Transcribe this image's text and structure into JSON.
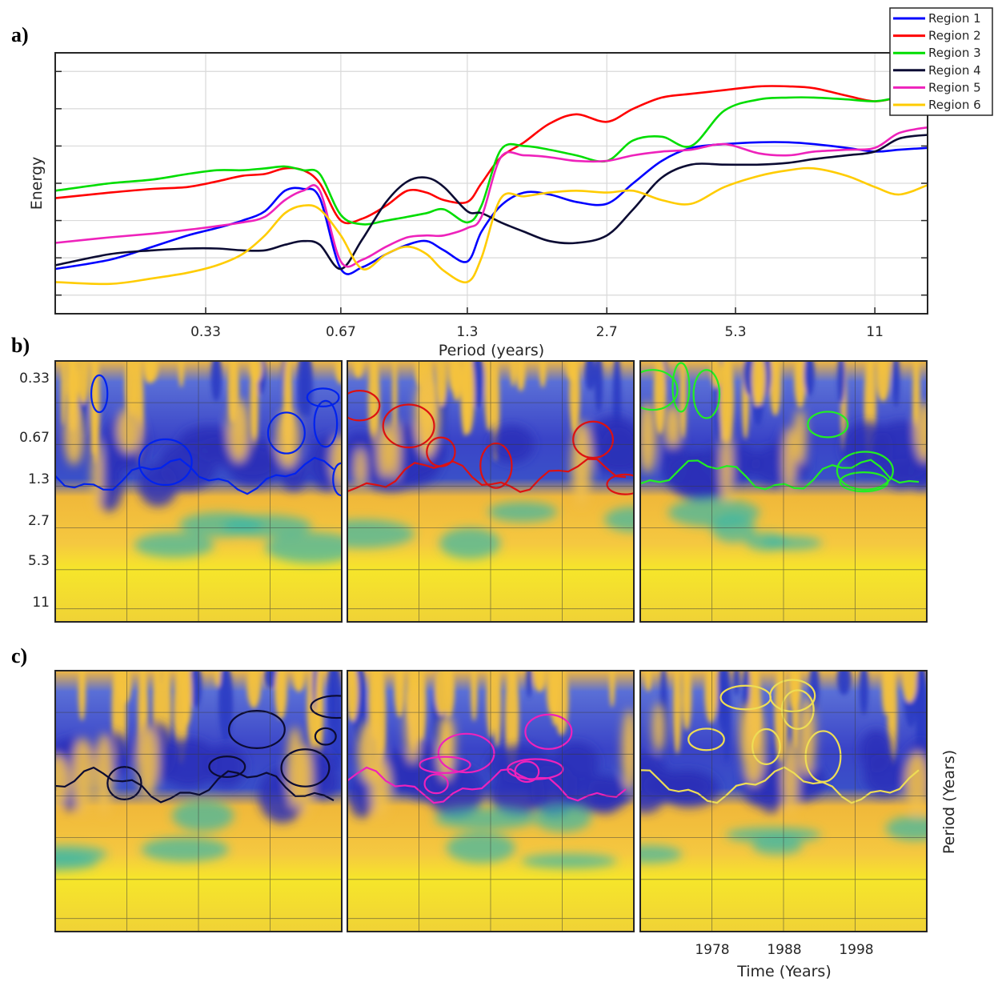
{
  "panel_labels": [
    "a)",
    "b)",
    "c)"
  ],
  "chart_data": [
    {
      "type": "line",
      "panel": "a)",
      "xlabel": "Period (years)",
      "ylabel": "Energy",
      "x_tick_labels": [
        "0.33",
        "0.67",
        "1.3",
        "2.7",
        "5.3",
        "11"
      ],
      "grid": true,
      "legend_position": "top-right",
      "x": [
        0.15,
        0.2,
        0.25,
        0.3,
        0.35,
        0.4,
        0.45,
        0.5,
        0.55,
        0.6,
        0.67,
        0.75,
        0.85,
        0.95,
        1.05,
        1.15,
        1.3,
        1.4,
        1.55,
        1.75,
        2.0,
        2.3,
        2.7,
        3.1,
        3.6,
        4.2,
        5.0,
        6.0,
        7.0,
        8.0,
        9.5,
        11.0,
        12.5,
        14.5
      ],
      "series": [
        {
          "name": "Region 1",
          "color": "#0000ff",
          "values": [
            2.7,
            2.95,
            3.3,
            3.6,
            3.8,
            4.0,
            4.25,
            4.8,
            4.85,
            4.6,
            2.7,
            2.75,
            3.1,
            3.35,
            3.45,
            3.2,
            2.9,
            3.7,
            4.4,
            4.75,
            4.7,
            4.5,
            4.45,
            5.0,
            5.6,
            5.95,
            6.05,
            6.1,
            6.1,
            6.05,
            5.95,
            5.85,
            5.9,
            5.95
          ]
        },
        {
          "name": "Region 2",
          "color": "#ff0000",
          "values": [
            4.6,
            4.75,
            4.85,
            4.9,
            5.05,
            5.2,
            5.25,
            5.4,
            5.35,
            5.0,
            4.0,
            4.05,
            4.4,
            4.8,
            4.75,
            4.55,
            4.5,
            5.0,
            5.7,
            6.1,
            6.6,
            6.85,
            6.65,
            7.0,
            7.3,
            7.4,
            7.5,
            7.6,
            7.6,
            7.55,
            7.35,
            7.2,
            7.3,
            7.35
          ]
        },
        {
          "name": "Region 3",
          "color": "#00dd00",
          "values": [
            4.8,
            5.0,
            5.1,
            5.25,
            5.35,
            5.35,
            5.4,
            5.45,
            5.35,
            5.25,
            4.15,
            3.9,
            4.0,
            4.1,
            4.2,
            4.3,
            3.95,
            4.4,
            5.9,
            6.0,
            5.9,
            5.75,
            5.6,
            6.15,
            6.25,
            6.0,
            6.95,
            7.25,
            7.3,
            7.3,
            7.25,
            7.2,
            7.3,
            7.35
          ]
        },
        {
          "name": "Region 4",
          "color": "#0b0b33",
          "values": [
            2.8,
            3.1,
            3.2,
            3.25,
            3.25,
            3.2,
            3.2,
            3.35,
            3.45,
            3.35,
            2.7,
            3.5,
            4.5,
            5.05,
            5.15,
            4.9,
            4.25,
            4.2,
            3.95,
            3.7,
            3.45,
            3.4,
            3.6,
            4.3,
            5.15,
            5.5,
            5.5,
            5.5,
            5.55,
            5.65,
            5.75,
            5.85,
            6.2,
            6.3
          ]
        },
        {
          "name": "Region 5",
          "color": "#ee22bb",
          "values": [
            3.4,
            3.55,
            3.65,
            3.75,
            3.85,
            3.95,
            4.1,
            4.55,
            4.8,
            4.8,
            2.9,
            2.95,
            3.3,
            3.55,
            3.6,
            3.6,
            3.8,
            4.1,
            5.7,
            5.75,
            5.7,
            5.6,
            5.6,
            5.75,
            5.85,
            5.9,
            6.05,
            5.8,
            5.75,
            5.85,
            5.9,
            5.95,
            6.35,
            6.5
          ]
        },
        {
          "name": "Region 6",
          "color": "#ffcc00",
          "values": [
            2.35,
            2.3,
            2.45,
            2.6,
            2.8,
            3.1,
            3.6,
            4.2,
            4.4,
            4.3,
            3.6,
            2.7,
            3.1,
            3.3,
            3.1,
            2.65,
            2.35,
            3.0,
            4.6,
            4.65,
            4.75,
            4.8,
            4.75,
            4.8,
            4.55,
            4.45,
            4.9,
            5.2,
            5.35,
            5.4,
            5.2,
            4.9,
            4.7,
            4.95
          ]
        }
      ]
    },
    {
      "type": "heatmap",
      "panel": "b)",
      "ylabel": "",
      "y_tick_labels": [
        "0.33",
        "0.67",
        "1.3",
        "2.7",
        "5.3",
        "11"
      ],
      "subplots": [
        {
          "region": "Region 1",
          "contour_color": "#0022ee"
        },
        {
          "region": "Region 2",
          "contour_color": "#dd1111"
        },
        {
          "region": "Region 3",
          "contour_color": "#22ee22"
        }
      ]
    },
    {
      "type": "heatmap",
      "panel": "c)",
      "xlabel": "Time (Years)",
      "ylabel": "Period (Years)",
      "x_tick_labels": [
        "1978",
        "1988",
        "1998"
      ],
      "subplots": [
        {
          "region": "Region 4",
          "contour_color": "#0b0b33"
        },
        {
          "region": "Region 5",
          "contour_color": "#ee22bb"
        },
        {
          "region": "Region 6",
          "contour_color": "#eedd55"
        }
      ]
    }
  ]
}
